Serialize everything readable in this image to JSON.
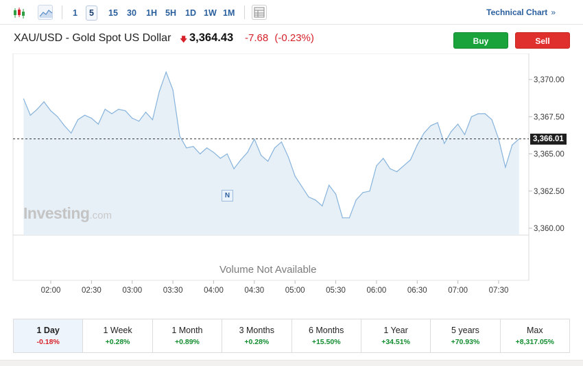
{
  "toolbar": {
    "timeframes": [
      "1",
      "5",
      "15",
      "30",
      "1H",
      "5H",
      "1D",
      "1W",
      "1M"
    ],
    "active_timeframe": "5",
    "technical_chart_label": "Technical Chart",
    "technical_chart_arrow": "»"
  },
  "header": {
    "symbol": "XAU/USD - Gold Spot US Dollar",
    "price": "3,364.43",
    "change": "-7.68",
    "change_pct": "(-0.23%)",
    "buy_label": "Buy",
    "sell_label": "Sell"
  },
  "colors": {
    "buy": "#19a33a",
    "sell": "#e0302e",
    "line": "#86b3dc",
    "area": "#e7eff7",
    "negative": "#d6202a",
    "positive": "#118c2e"
  },
  "chart": {
    "watermark_brand": "Investing",
    "watermark_suffix": ".com",
    "volume_note": "Volume Not Available",
    "news_marker": "N",
    "last_value_label": "3,366.01"
  },
  "chart_data": {
    "type": "area",
    "x_labels": [
      "02:00",
      "02:30",
      "03:00",
      "03:30",
      "04:00",
      "04:30",
      "05:00",
      "05:30",
      "06:00",
      "06:30",
      "07:00",
      "07:30"
    ],
    "y_ticks": [
      3360.0,
      3362.5,
      3365.0,
      3367.5,
      3370.0
    ],
    "y_tick_labels": [
      "3,360.00",
      "3,362.50",
      "3,365.00",
      "3,367.50",
      "3,370.00"
    ],
    "ylim": [
      3359.4,
      3372.5
    ],
    "xlim": [
      "01:40",
      "07:45"
    ],
    "last_value": 3366.01,
    "grid": false,
    "series": [
      {
        "x": [
          "01:40",
          "01:45",
          "01:50",
          "01:55",
          "02:00",
          "02:05",
          "02:10",
          "02:15",
          "02:20",
          "02:25",
          "02:30",
          "02:35",
          "02:40",
          "02:45",
          "02:50",
          "02:55",
          "03:00",
          "03:05",
          "03:10",
          "03:15",
          "03:20",
          "03:25",
          "03:30",
          "03:35",
          "03:40",
          "03:45",
          "03:50",
          "03:55",
          "04:00",
          "04:05",
          "04:10",
          "04:15",
          "04:20",
          "04:25",
          "04:30",
          "04:35",
          "04:40",
          "04:45",
          "04:50",
          "04:55",
          "05:00",
          "05:05",
          "05:10",
          "05:15",
          "05:20",
          "05:25",
          "05:30",
          "05:35",
          "05:40",
          "05:45",
          "05:50",
          "05:55",
          "06:00",
          "06:05",
          "06:10",
          "06:15",
          "06:20",
          "06:25",
          "06:30",
          "06:35",
          "06:40",
          "06:45",
          "06:50",
          "06:55",
          "07:00",
          "07:05",
          "07:10",
          "07:15",
          "07:20",
          "07:25",
          "07:30",
          "07:35",
          "07:40",
          "07:45"
        ],
        "values": [
          3368.7,
          3367.6,
          3368.0,
          3368.5,
          3367.9,
          3367.5,
          3366.9,
          3366.4,
          3367.3,
          3367.6,
          3367.4,
          3367.0,
          3368.0,
          3367.7,
          3368.0,
          3367.9,
          3367.4,
          3367.2,
          3367.8,
          3367.3,
          3369.2,
          3370.5,
          3369.3,
          3366.2,
          3365.4,
          3365.5,
          3365.0,
          3365.4,
          3365.1,
          3364.7,
          3365.0,
          3364.0,
          3364.6,
          3365.1,
          3366.0,
          3364.9,
          3364.5,
          3365.4,
          3365.8,
          3364.8,
          3363.5,
          3362.8,
          3362.1,
          3361.9,
          3361.5,
          3362.9,
          3362.3,
          3360.7,
          3360.7,
          3361.9,
          3362.4,
          3362.5,
          3364.2,
          3364.7,
          3364.0,
          3363.8,
          3364.2,
          3364.6,
          3365.6,
          3366.4,
          3366.9,
          3367.1,
          3365.7,
          3366.5,
          3367.0,
          3366.3,
          3367.5,
          3367.7,
          3367.7,
          3367.3,
          3366.0,
          3364.1,
          3365.6,
          3366.0
        ]
      }
    ]
  },
  "periods": [
    {
      "label": "1 Day",
      "change": "-0.18%",
      "direction": "neg",
      "active": true
    },
    {
      "label": "1 Week",
      "change": "+0.28%",
      "direction": "pos",
      "active": false
    },
    {
      "label": "1 Month",
      "change": "+0.89%",
      "direction": "pos",
      "active": false
    },
    {
      "label": "3 Months",
      "change": "+0.28%",
      "direction": "pos",
      "active": false
    },
    {
      "label": "6 Months",
      "change": "+15.50%",
      "direction": "pos",
      "active": false
    },
    {
      "label": "1 Year",
      "change": "+34.51%",
      "direction": "pos",
      "active": false
    },
    {
      "label": "5 years",
      "change": "+70.93%",
      "direction": "pos",
      "active": false
    },
    {
      "label": "Max",
      "change": "+8,317.05%",
      "direction": "pos",
      "active": false
    }
  ]
}
